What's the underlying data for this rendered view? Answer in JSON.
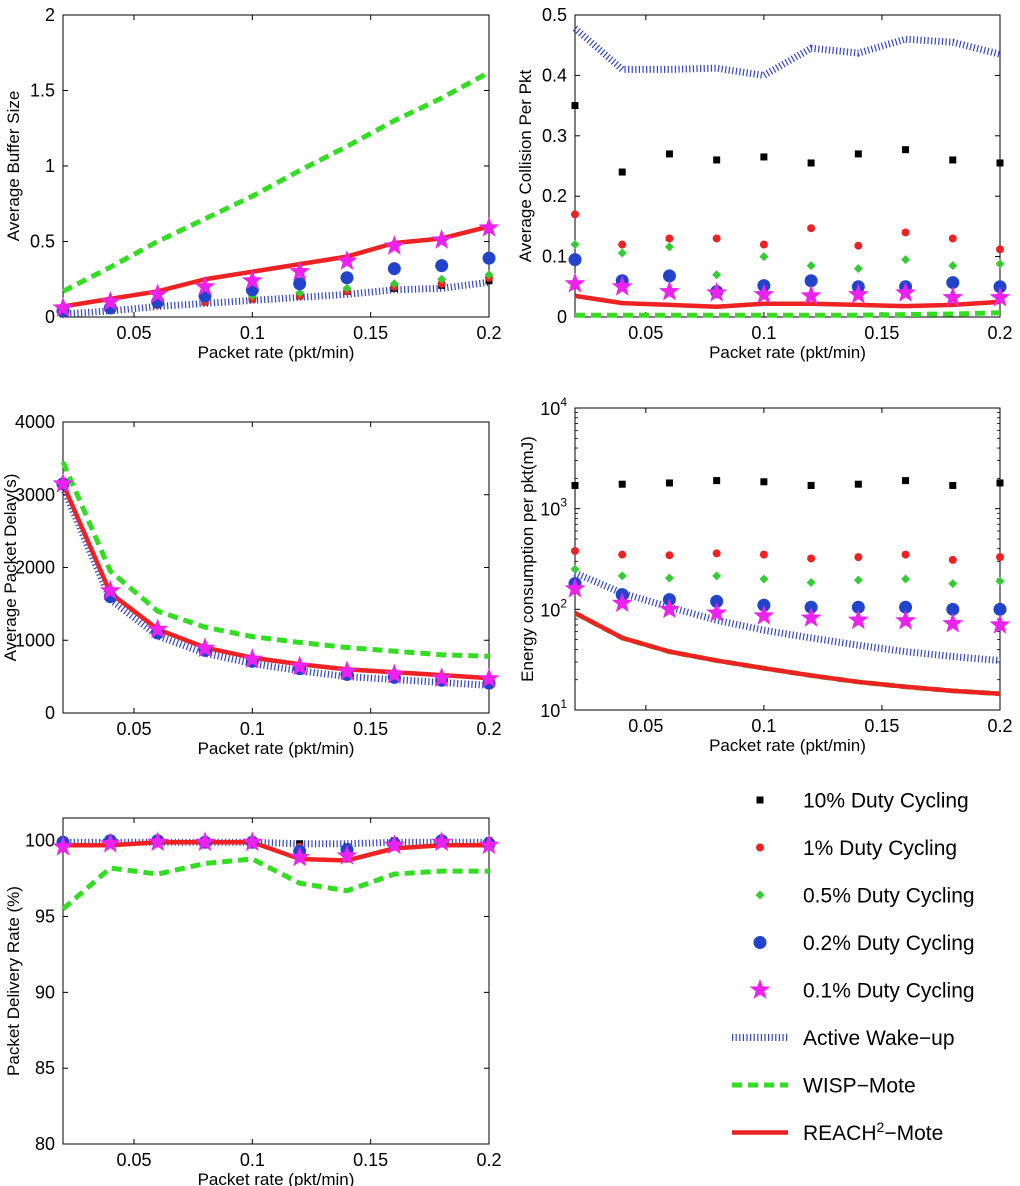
{
  "legend": [
    {
      "key": "dc10",
      "label": "10% Duty Cycling",
      "kind": "marker",
      "shape": "square",
      "color": "#000000"
    },
    {
      "key": "dc1",
      "label": "1% Duty Cycling",
      "kind": "marker",
      "shape": "circle-small",
      "color": "#ee2222"
    },
    {
      "key": "dc05",
      "label": "0.5% Duty Cycling",
      "kind": "marker",
      "shape": "diamond",
      "color": "#33cc33"
    },
    {
      "key": "dc02",
      "label": "0.2% Duty Cycling",
      "kind": "marker",
      "shape": "circle",
      "color": "#2244cc"
    },
    {
      "key": "dc01",
      "label": "0.1% Duty Cycling",
      "kind": "marker",
      "shape": "star",
      "color": "#ee22ee"
    },
    {
      "key": "awu",
      "label": "Active Wake−up",
      "kind": "line",
      "style": "dotted",
      "color": "#3344cc"
    },
    {
      "key": "wisp",
      "label": "WISP−Mote",
      "kind": "line",
      "style": "dashed",
      "color": "#33dd22"
    },
    {
      "key": "reach",
      "label": "REACH",
      "label_sup": "2",
      "label_tail": "−Mote",
      "kind": "line",
      "style": "solid",
      "color": "#ee2222"
    }
  ],
  "chart_data": [
    {
      "id": "buffer",
      "type": "line",
      "xlabel": "Packet rate (pkt/min)",
      "ylabel": "Average Buffer Size",
      "xlim": [
        0.02,
        0.2
      ],
      "ylim": [
        0,
        2
      ],
      "xticks": [
        0.05,
        0.1,
        0.15,
        0.2
      ],
      "xtick_labels": [
        "0.05",
        "0.1",
        "0.15",
        "0.2"
      ],
      "yticks": [
        0,
        0.5,
        1,
        1.5,
        2
      ],
      "ytick_labels": [
        "0",
        "0.5",
        "1",
        "1.5",
        "2"
      ],
      "x": [
        0.02,
        0.04,
        0.06,
        0.08,
        0.1,
        0.12,
        0.14,
        0.16,
        0.18,
        0.2
      ],
      "series": [
        {
          "key": "dc10",
          "values": [
            0.02,
            0.05,
            0.08,
            0.1,
            0.12,
            0.14,
            0.17,
            0.19,
            0.21,
            0.24
          ]
        },
        {
          "key": "dc1",
          "values": [
            0.02,
            0.05,
            0.08,
            0.1,
            0.12,
            0.14,
            0.17,
            0.2,
            0.22,
            0.26
          ]
        },
        {
          "key": "dc05",
          "values": [
            0.03,
            0.06,
            0.09,
            0.12,
            0.14,
            0.16,
            0.19,
            0.22,
            0.25,
            0.28
          ]
        },
        {
          "key": "dc02",
          "values": [
            0.04,
            0.06,
            0.1,
            0.14,
            0.18,
            0.22,
            0.26,
            0.32,
            0.34,
            0.39
          ]
        },
        {
          "key": "dc01",
          "values": [
            0.06,
            0.1,
            0.15,
            0.2,
            0.24,
            0.3,
            0.37,
            0.47,
            0.51,
            0.59
          ]
        },
        {
          "key": "awu",
          "values": [
            0.02,
            0.04,
            0.07,
            0.09,
            0.11,
            0.13,
            0.15,
            0.18,
            0.19,
            0.23
          ]
        },
        {
          "key": "wisp",
          "values": [
            0.17,
            0.33,
            0.5,
            0.65,
            0.8,
            0.97,
            1.13,
            1.3,
            1.45,
            1.62
          ]
        },
        {
          "key": "reach",
          "values": [
            0.07,
            0.12,
            0.17,
            0.25,
            0.3,
            0.35,
            0.4,
            0.49,
            0.52,
            0.6
          ]
        }
      ]
    },
    {
      "id": "collision",
      "type": "line",
      "xlabel": "Packet rate (pkt/min)",
      "ylabel": "Average Collision Per Pkt",
      "xlim": [
        0.02,
        0.2
      ],
      "ylim": [
        0,
        0.5
      ],
      "xticks": [
        0.05,
        0.1,
        0.15,
        0.2
      ],
      "xtick_labels": [
        "0.05",
        "0.1",
        "0.15",
        "0.2"
      ],
      "yticks": [
        0,
        0.1,
        0.2,
        0.3,
        0.4,
        0.5
      ],
      "ytick_labels": [
        "0",
        "0.1",
        "0.2",
        "0.3",
        "0.4",
        "0.5"
      ],
      "x": [
        0.02,
        0.04,
        0.06,
        0.08,
        0.1,
        0.12,
        0.14,
        0.16,
        0.18,
        0.2
      ],
      "series": [
        {
          "key": "dc10",
          "values": [
            0.35,
            0.24,
            0.27,
            0.26,
            0.265,
            0.255,
            0.27,
            0.277,
            0.26,
            0.255
          ]
        },
        {
          "key": "dc1",
          "values": [
            0.17,
            0.12,
            0.13,
            0.13,
            0.12,
            0.147,
            0.118,
            0.14,
            0.13,
            0.112
          ]
        },
        {
          "key": "dc05",
          "values": [
            0.12,
            0.106,
            0.116,
            0.07,
            0.1,
            0.085,
            0.08,
            0.095,
            0.085,
            0.088
          ]
        },
        {
          "key": "dc02",
          "values": [
            0.095,
            0.06,
            0.068,
            0.042,
            0.052,
            0.06,
            0.05,
            0.05,
            0.057,
            0.05
          ]
        },
        {
          "key": "dc01",
          "values": [
            0.055,
            0.05,
            0.042,
            0.04,
            0.037,
            0.035,
            0.037,
            0.04,
            0.032,
            0.032
          ]
        },
        {
          "key": "awu",
          "values": [
            0.478,
            0.41,
            0.41,
            0.412,
            0.4,
            0.445,
            0.437,
            0.46,
            0.455,
            0.435
          ]
        },
        {
          "key": "wisp",
          "values": [
            0.003,
            0.003,
            0.003,
            0.003,
            0.003,
            0.003,
            0.003,
            0.004,
            0.005,
            0.007
          ]
        },
        {
          "key": "reach",
          "values": [
            0.035,
            0.023,
            0.02,
            0.017,
            0.022,
            0.022,
            0.02,
            0.018,
            0.02,
            0.025
          ]
        }
      ]
    },
    {
      "id": "delay",
      "type": "line",
      "xlabel": "Packet rate (pkt/min)",
      "ylabel": "Average Packet Delay(s)",
      "xlim": [
        0.02,
        0.2
      ],
      "ylim": [
        0,
        4000
      ],
      "xticks": [
        0.05,
        0.1,
        0.15,
        0.2
      ],
      "xtick_labels": [
        "0.05",
        "0.1",
        "0.15",
        "0.2"
      ],
      "yticks": [
        0,
        1000,
        2000,
        3000,
        4000
      ],
      "ytick_labels": [
        "0",
        "1000",
        "2000",
        "3000",
        "4000"
      ],
      "x": [
        0.02,
        0.04,
        0.06,
        0.08,
        0.1,
        0.12,
        0.14,
        0.16,
        0.18,
        0.2
      ],
      "series": [
        {
          "key": "dc10",
          "values": [
            3150,
            1600,
            1100,
            850,
            700,
            600,
            520,
            480,
            440,
            410
          ]
        },
        {
          "key": "dc1",
          "values": [
            3150,
            1600,
            1100,
            850,
            700,
            600,
            520,
            480,
            440,
            410
          ]
        },
        {
          "key": "dc05",
          "values": [
            3150,
            1600,
            1100,
            850,
            700,
            600,
            520,
            480,
            440,
            410
          ]
        },
        {
          "key": "dc02",
          "values": [
            3150,
            1600,
            1100,
            860,
            710,
            610,
            530,
            490,
            450,
            410
          ]
        },
        {
          "key": "dc01",
          "values": [
            3150,
            1680,
            1150,
            890,
            740,
            640,
            570,
            530,
            480,
            470
          ]
        },
        {
          "key": "awu",
          "values": [
            3100,
            1560,
            1060,
            820,
            680,
            580,
            500,
            460,
            420,
            380
          ]
        },
        {
          "key": "wisp",
          "values": [
            3450,
            1950,
            1400,
            1180,
            1050,
            970,
            900,
            850,
            800,
            780
          ]
        },
        {
          "key": "reach",
          "values": [
            3150,
            1650,
            1150,
            900,
            760,
            670,
            600,
            560,
            520,
            480
          ]
        }
      ]
    },
    {
      "id": "energy",
      "type": "line",
      "xlabel": "Packet rate (pkt/min)",
      "ylabel": "Energy consumption per pkt(mJ)",
      "xlim": [
        0.02,
        0.2
      ],
      "yscale": "log",
      "ylim": [
        10,
        10000
      ],
      "xticks": [
        0.05,
        0.1,
        0.15,
        0.2
      ],
      "xtick_labels": [
        "0.05",
        "0.1",
        "0.15",
        "0.2"
      ],
      "yticks": [
        10,
        100,
        1000,
        10000
      ],
      "ytick_base": "10",
      "ytick_exps": [
        "1",
        "2",
        "3",
        "4"
      ],
      "x": [
        0.02,
        0.04,
        0.06,
        0.08,
        0.1,
        0.12,
        0.14,
        0.16,
        0.18,
        0.2
      ],
      "series": [
        {
          "key": "dc10",
          "values": [
            1700,
            1750,
            1800,
            1900,
            1850,
            1700,
            1750,
            1900,
            1700,
            1800
          ]
        },
        {
          "key": "dc1",
          "values": [
            380,
            350,
            345,
            360,
            350,
            320,
            330,
            350,
            310,
            330
          ]
        },
        {
          "key": "dc05",
          "values": [
            250,
            215,
            205,
            215,
            200,
            185,
            195,
            200,
            180,
            190
          ]
        },
        {
          "key": "dc02",
          "values": [
            180,
            140,
            125,
            120,
            110,
            105,
            105,
            105,
            100,
            100
          ]
        },
        {
          "key": "dc01",
          "values": [
            160,
            115,
            100,
            92,
            86,
            82,
            78,
            77,
            72,
            70
          ]
        },
        {
          "key": "awu",
          "values": [
            230,
            145,
            105,
            78,
            62,
            52,
            44,
            38,
            34,
            31
          ]
        },
        {
          "key": "wisp",
          "values": [
            92,
            52,
            38,
            31,
            26,
            22,
            19,
            17,
            15.5,
            14.5
          ]
        },
        {
          "key": "reach",
          "values": [
            92,
            52,
            38,
            31,
            26,
            22,
            19,
            17,
            15.5,
            14.5
          ]
        }
      ]
    },
    {
      "id": "delivery",
      "type": "line",
      "xlabel": "Packet rate (pkt/min)",
      "ylabel": "Packet Delivery Rate (%)",
      "xlim": [
        0.02,
        0.2
      ],
      "ylim": [
        80,
        101.5
      ],
      "xticks": [
        0.05,
        0.1,
        0.15,
        0.2
      ],
      "xtick_labels": [
        "0.05",
        "0.1",
        "0.15",
        "0.2"
      ],
      "yticks": [
        80,
        85,
        90,
        95,
        100
      ],
      "ytick_labels": [
        "80",
        "85",
        "90",
        "95",
        "100"
      ],
      "x": [
        0.02,
        0.04,
        0.06,
        0.08,
        0.1,
        0.12,
        0.14,
        0.16,
        0.18,
        0.2
      ],
      "series": [
        {
          "key": "dc10",
          "values": [
            100,
            100,
            100,
            100,
            100,
            99.8,
            99.6,
            100,
            100,
            100
          ]
        },
        {
          "key": "dc1",
          "values": [
            100,
            100,
            100,
            100,
            100,
            99.6,
            99.4,
            99.9,
            100,
            100
          ]
        },
        {
          "key": "dc05",
          "values": [
            100,
            100,
            100,
            100,
            100,
            99.5,
            99.3,
            99.9,
            100,
            100
          ]
        },
        {
          "key": "dc02",
          "values": [
            99.9,
            100,
            100,
            99.9,
            99.9,
            99.3,
            99.4,
            99.8,
            100,
            99.8
          ]
        },
        {
          "key": "dc01",
          "values": [
            99.6,
            99.8,
            99.9,
            99.9,
            99.9,
            98.9,
            99.0,
            99.7,
            99.9,
            99.7
          ]
        },
        {
          "key": "awu",
          "values": [
            99.9,
            99.9,
            99.9,
            99.9,
            99.9,
            99.8,
            99.8,
            99.9,
            99.9,
            99.9
          ]
        },
        {
          "key": "wisp",
          "values": [
            95.5,
            98.2,
            97.8,
            98.5,
            98.8,
            97.2,
            96.7,
            97.8,
            98.0,
            98.0
          ]
        },
        {
          "key": "reach",
          "values": [
            99.7,
            99.7,
            99.9,
            99.9,
            99.9,
            98.8,
            98.7,
            99.5,
            99.7,
            99.7
          ]
        }
      ]
    }
  ]
}
